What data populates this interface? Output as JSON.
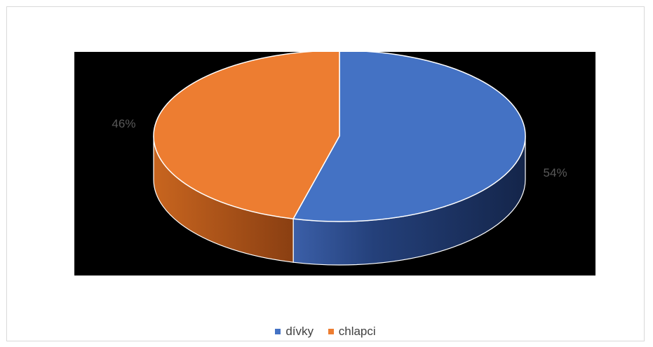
{
  "chart_data": {
    "type": "pie",
    "style": "3d",
    "categories": [
      "dívky",
      "chlapci"
    ],
    "values": [
      54,
      46
    ],
    "data_labels": [
      "54%",
      "46%"
    ],
    "colors": [
      "#4472C4",
      "#ED7D31"
    ],
    "background": "#000000",
    "legend": {
      "position": "bottom",
      "entries": [
        "dívky",
        "chlapci"
      ]
    }
  }
}
